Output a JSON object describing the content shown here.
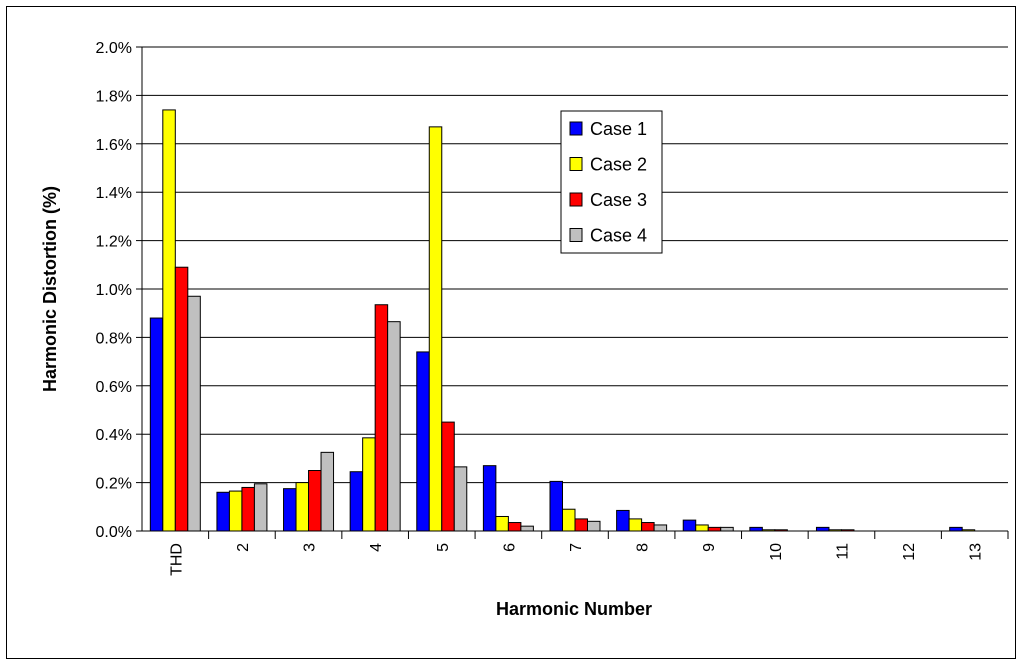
{
  "chart_data": {
    "type": "bar",
    "xlabel": "Harmonic Number",
    "ylabel": "Harmonic Distortion (%)",
    "ylim": [
      0,
      2.0
    ],
    "yticks": [
      "0.0%",
      "0.2%",
      "0.4%",
      "0.6%",
      "0.8%",
      "1.0%",
      "1.2%",
      "1.4%",
      "1.6%",
      "1.8%",
      "2.0%"
    ],
    "grid": "horizontal",
    "legend_position": "upper-center",
    "categories": [
      "THD",
      "2",
      "3",
      "4",
      "5",
      "6",
      "7",
      "8",
      "9",
      "10",
      "11",
      "12",
      "13"
    ],
    "series": [
      {
        "name": "Case 1",
        "color": "#0000ff",
        "values": [
          0.88,
          0.16,
          0.175,
          0.245,
          0.74,
          0.27,
          0.205,
          0.085,
          0.045,
          0.015,
          0.015,
          0.0,
          0.015
        ]
      },
      {
        "name": "Case 2",
        "color": "#ffff00",
        "values": [
          1.74,
          0.165,
          0.2,
          0.385,
          1.67,
          0.06,
          0.09,
          0.05,
          0.025,
          0.005,
          0.005,
          0.0,
          0.005
        ]
      },
      {
        "name": "Case 3",
        "color": "#ff0000",
        "values": [
          1.09,
          0.18,
          0.25,
          0.935,
          0.45,
          0.035,
          0.05,
          0.035,
          0.015,
          0.005,
          0.005,
          0.0,
          0.0
        ]
      },
      {
        "name": "Case 4",
        "color": "#c0c0c0",
        "values": [
          0.97,
          0.195,
          0.325,
          0.865,
          0.265,
          0.02,
          0.04,
          0.025,
          0.015,
          0.0,
          0.0,
          0.0,
          0.0
        ]
      }
    ]
  }
}
